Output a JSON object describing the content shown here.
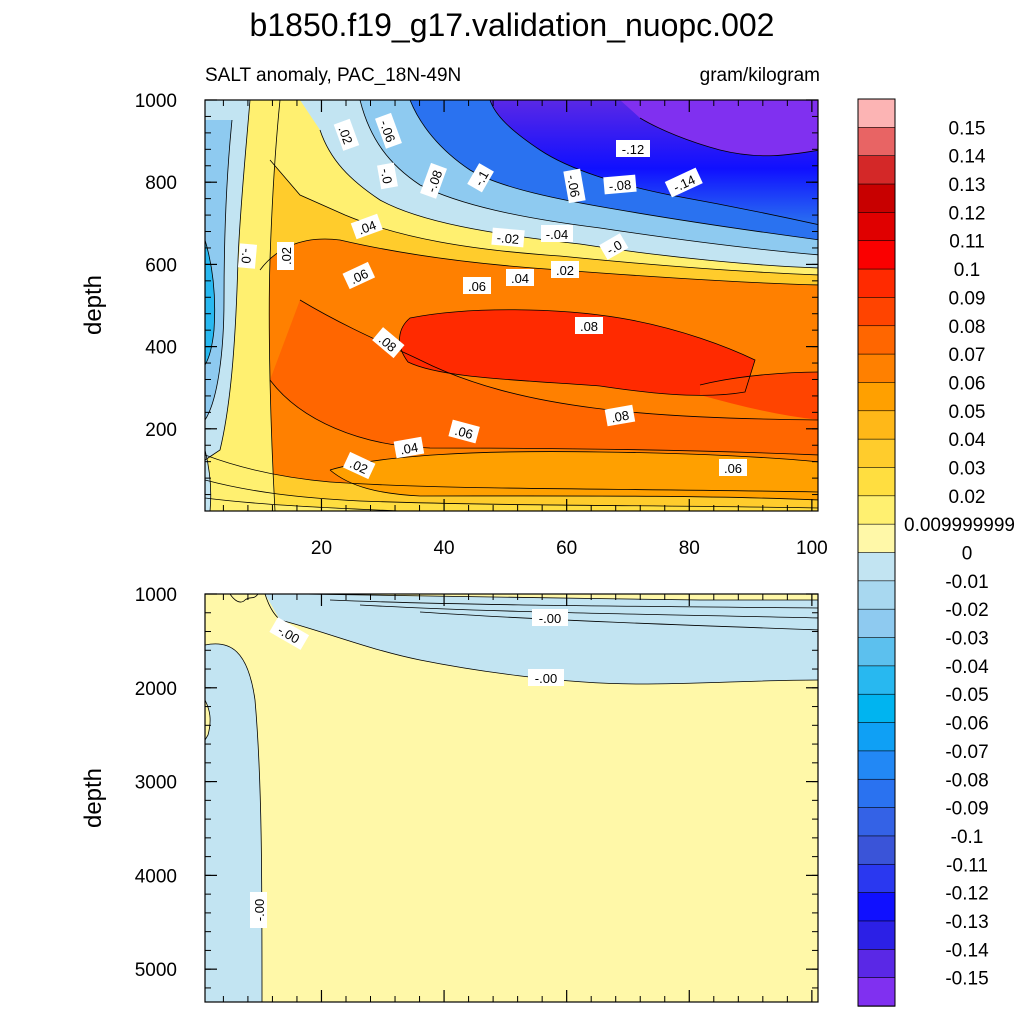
{
  "chart_data": {
    "type": "heatmap",
    "title": "b1850.f19_g17.validation_nuopc.002",
    "subtitle_left": "SALT anomaly, PAC_18N-49N",
    "subtitle_right": "gram/kilogram",
    "ylabel": "depth",
    "x_ticks": [
      "20",
      "40",
      "60",
      "80",
      "100"
    ],
    "x_range": [
      1,
      101
    ],
    "upper_panel": {
      "ylim": [
        1000,
        0
      ],
      "y_ticks": [
        "200",
        "400",
        "600",
        "800",
        "1000"
      ],
      "contour_labels": [
        ".02",
        "-.06",
        "-.0",
        ".04",
        "-.08",
        "-.1",
        "-.06",
        "-.12",
        "-.08",
        "-.14",
        "-.02",
        "-.04",
        "-.0",
        "-.0",
        ".02",
        ".06",
        ".04",
        ".06",
        ".02",
        ".08",
        ".08",
        ".08",
        ".06",
        ".04",
        ".02",
        ".06"
      ]
    },
    "lower_panel": {
      "ylim": [
        1000,
        5350
      ],
      "y_ticks": [
        "1000",
        "2000",
        "3000",
        "4000",
        "5000"
      ],
      "contour_labels": [
        "-.00",
        "-.00",
        "-.00",
        "-.00"
      ]
    },
    "colorbar": {
      "labels": [
        "0.15",
        "0.14",
        "0.13",
        "0.12",
        "0.11",
        "0.1",
        "0.09",
        "0.08",
        "0.07",
        "0.06",
        "0.05",
        "0.04",
        "0.03",
        "0.02",
        "0.009999999",
        "0",
        "-0.01",
        "-0.02",
        "-0.03",
        "-0.04",
        "-0.05",
        "-0.06",
        "-0.07",
        "-0.08",
        "-0.09",
        "-0.1",
        "-0.11",
        "-0.12",
        "-0.13",
        "-0.14",
        "-0.15"
      ],
      "colors": [
        "#fcb4b4",
        "#e86464",
        "#d42828",
        "#c80000",
        "#e00000",
        "#fa0000",
        "#ff2a00",
        "#ff4400",
        "#ff6600",
        "#ff8000",
        "#ffa000",
        "#ffb818",
        "#ffcc2c",
        "#ffde40",
        "#fff070",
        "#fff8a8",
        "#c2e4f2",
        "#a8d8f0",
        "#8ecaf0",
        "#5cc0ee",
        "#28b8f0",
        "#00b4f0",
        "#0fa0f5",
        "#2288f5",
        "#2a72f0",
        "#3462e6",
        "#3a54d8",
        "#2a38f0",
        "#1010ff",
        "#2c20e6",
        "#5a28e6",
        "#8030f0"
      ]
    }
  }
}
